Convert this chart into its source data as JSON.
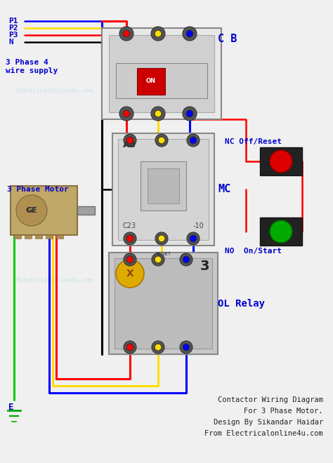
{
  "bg_color": "#f0f0f0",
  "title_lines": [
    "Contactor Wiring Diagram",
    "For 3 Phase Motor.",
    "Design By Sikandar Haidar",
    "From Electricalonline4u.com"
  ],
  "watermark": "ElectricalOnline4u.com.",
  "labels": {
    "P1": "P1",
    "P2": "P2",
    "P3": "P3",
    "N": "N",
    "supply": "3 Phase 4\nwire supply",
    "CB": "C B",
    "NC": "NC Off/Reset",
    "NO": "NO  On/Start",
    "MC": "MC",
    "OL": "OL Relay",
    "motor": "3 Phase Motor",
    "E": "E"
  },
  "wire_colors": {
    "blue": "#0000ff",
    "red": "#ff0000",
    "yellow": "#ffdd00",
    "black": "#000000",
    "green": "#00cc00"
  },
  "component_colors": {
    "cb_body": "#c8c8c8",
    "mc_body": "#d0d0d0",
    "ol_body": "#b0b0b0",
    "nc_button": "#ff2222",
    "no_button": "#00bb00",
    "button_body": "#222222",
    "motor_body": "#c0a868",
    "label_blue": "#0000cc",
    "label_red": "#cc0000"
  }
}
